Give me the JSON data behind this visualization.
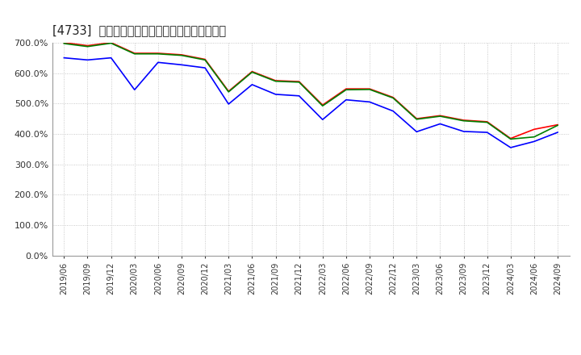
{
  "title": "[4733]  流動比率、当座比率、現預金比率の推移",
  "x_labels": [
    "2019/06",
    "2019/09",
    "2019/12",
    "2020/03",
    "2020/06",
    "2020/09",
    "2020/12",
    "2021/03",
    "2021/06",
    "2021/09",
    "2021/12",
    "2022/03",
    "2022/06",
    "2022/09",
    "2022/12",
    "2023/03",
    "2023/06",
    "2023/09",
    "2023/12",
    "2024/03",
    "2024/06",
    "2024/09"
  ],
  "ryudo": [
    700,
    690,
    700,
    665,
    665,
    660,
    645,
    540,
    605,
    575,
    572,
    495,
    548,
    548,
    520,
    450,
    460,
    445,
    440,
    385,
    415,
    430
  ],
  "toza": [
    697,
    687,
    698,
    663,
    663,
    658,
    643,
    538,
    603,
    573,
    570,
    492,
    545,
    546,
    518,
    448,
    458,
    443,
    438,
    383,
    390,
    428
  ],
  "genyo": [
    650,
    643,
    650,
    545,
    635,
    627,
    617,
    498,
    562,
    530,
    525,
    447,
    512,
    505,
    475,
    407,
    433,
    408,
    405,
    355,
    375,
    405
  ],
  "ryudo_color": "#ff0000",
  "toza_color": "#008000",
  "genyo_color": "#0000ff",
  "bg_color": "#ffffff",
  "grid_color": "#aaaaaa",
  "ylim": [
    0,
    700
  ],
  "yticks": [
    0,
    100,
    200,
    300,
    400,
    500,
    600,
    700
  ],
  "legend_labels": [
    "流動比率",
    "当座比率",
    "現預金比率"
  ]
}
